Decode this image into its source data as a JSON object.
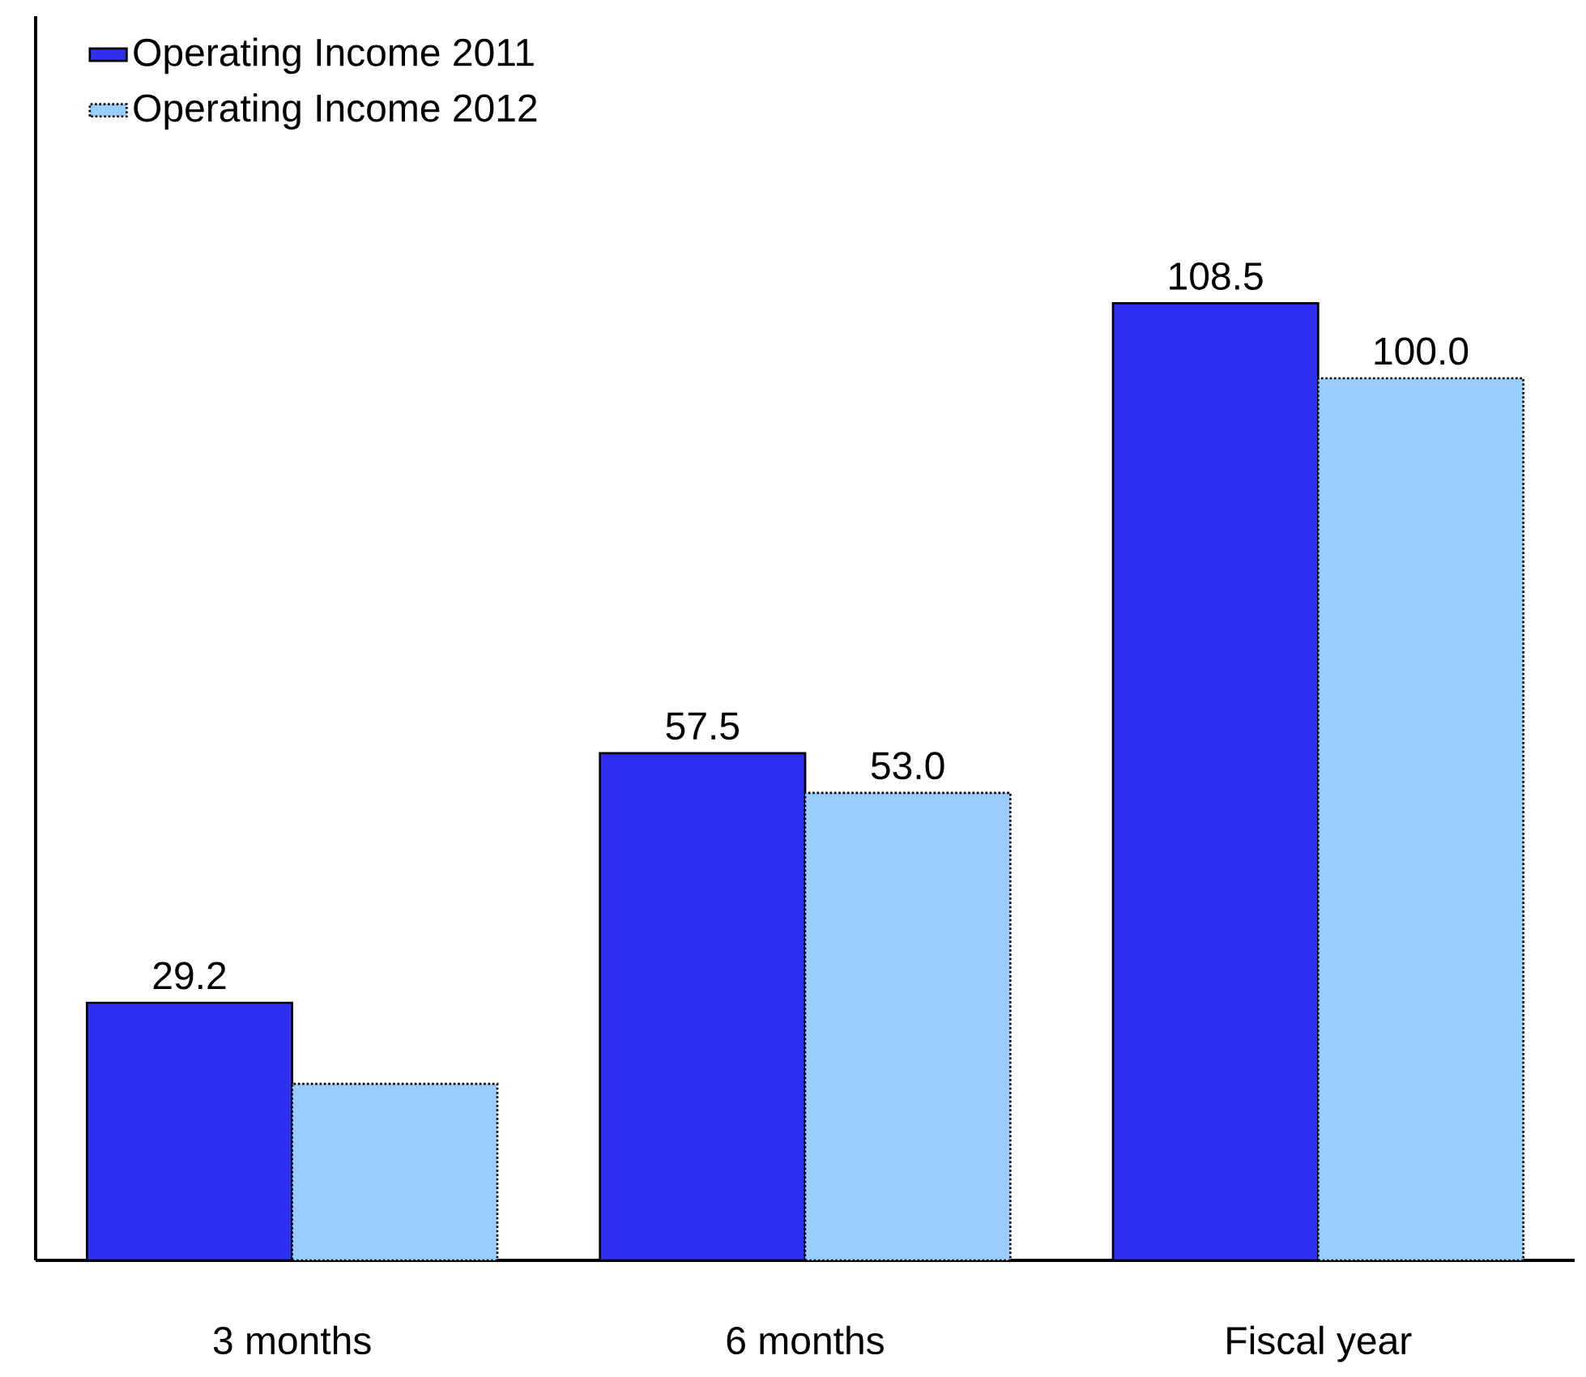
{
  "chart_data": {
    "type": "bar",
    "categories": [
      "3 months",
      "6 months",
      "Fiscal year"
    ],
    "series": [
      {
        "name": "Operating Income 2011",
        "color": "#2f2fef",
        "values": [
          29.2,
          57.5,
          108.5
        ],
        "value_labels": [
          "29.2",
          "57.5",
          "108.5"
        ]
      },
      {
        "name": "Operating Income 2012",
        "color": "#99ccff",
        "values": [
          20,
          53.0,
          100.0
        ],
        "value_labels": [
          null,
          "53.0",
          "100.0"
        ],
        "line_style": "dotted"
      }
    ],
    "legend": "top left"
  }
}
